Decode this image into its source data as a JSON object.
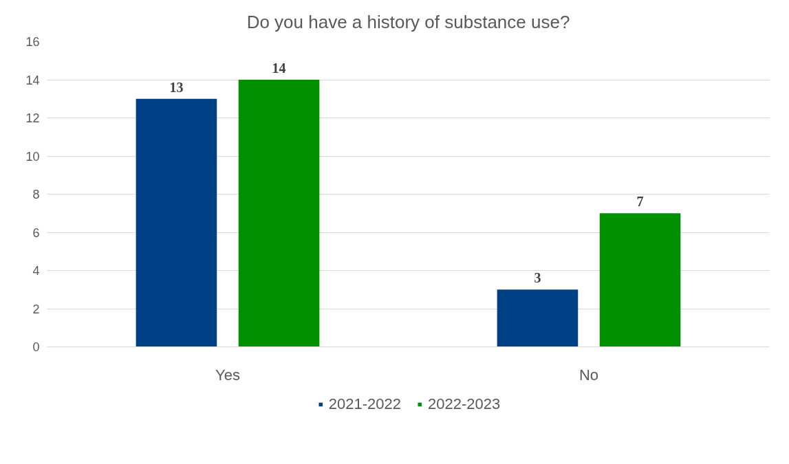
{
  "chart_data": {
    "type": "bar",
    "title": "Do you have a history of substance use?",
    "categories": [
      "Yes",
      "No"
    ],
    "series": [
      {
        "name": "2021-2022",
        "color": "#004085",
        "values": [
          13,
          3
        ]
      },
      {
        "name": "2022-2023",
        "color": "#008f00",
        "values": [
          14,
          7
        ]
      }
    ],
    "ylim": [
      0,
      16
    ],
    "yticks": [
      0,
      2,
      4,
      6,
      8,
      10,
      12,
      14,
      16
    ],
    "grid": "y",
    "legend": "bottom",
    "data_labels": true
  }
}
